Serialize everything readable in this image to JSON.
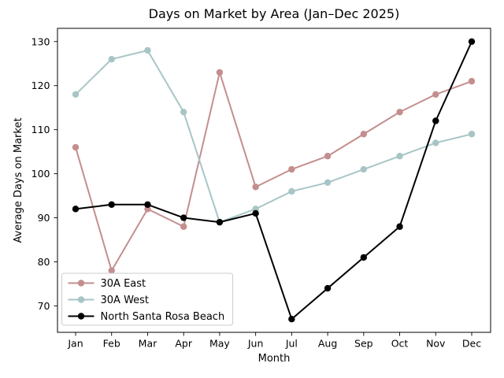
{
  "figure": {
    "background": "#ffffff"
  },
  "chart_data": {
    "type": "line",
    "title": "Days on Market by Area (Jan–Dec 2025)",
    "xlabel": "Month",
    "ylabel": "Average Days on Market",
    "categories": [
      "Jan",
      "Feb",
      "Mar",
      "Apr",
      "May",
      "Jun",
      "Jul",
      "Aug",
      "Sep",
      "Oct",
      "Nov",
      "Dec"
    ],
    "yticks": [
      70,
      80,
      90,
      100,
      110,
      120,
      130
    ],
    "ylim": [
      64,
      133
    ],
    "grid": false,
    "legend_position": "lower left",
    "series": [
      {
        "name": "30A East",
        "color": "#c48e8e",
        "values": [
          106,
          78,
          92,
          88,
          123,
          97,
          101,
          104,
          109,
          114,
          118,
          121
        ]
      },
      {
        "name": "30A West",
        "color": "#a8c5c6",
        "values": [
          118,
          126,
          128,
          114,
          89,
          92,
          96,
          98,
          101,
          104,
          107,
          109
        ]
      },
      {
        "name": "North Santa Rosa Beach",
        "color": "#000000",
        "values": [
          92,
          93,
          93,
          90,
          89,
          91,
          67,
          74,
          81,
          88,
          112,
          130
        ]
      }
    ]
  }
}
